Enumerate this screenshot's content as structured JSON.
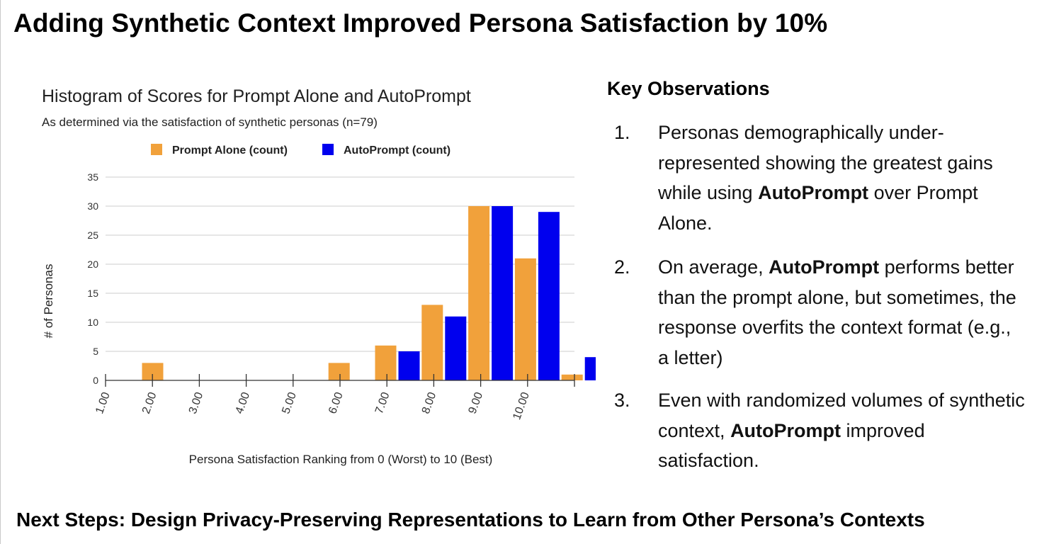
{
  "page": {
    "title": "Adding Synthetic Context Improved Persona Satisfaction by 10%",
    "next_steps": "Next Steps: Design Privacy-Preserving Representations to Learn from Other Persona’s Contexts"
  },
  "observations": {
    "heading": "Key Observations",
    "items": [
      {
        "number": "1.",
        "parts": [
          {
            "text": "Personas demographically under-represented showing the greatest gains while using ",
            "bold": false
          },
          {
            "text": "AutoPrompt",
            "bold": true
          },
          {
            "text": " over Prompt Alone.",
            "bold": false
          }
        ]
      },
      {
        "number": "2.",
        "parts": [
          {
            "text": "On average, ",
            "bold": false
          },
          {
            "text": "AutoPrompt",
            "bold": true
          },
          {
            "text": " performs better than the prompt alone, but sometimes, the response overfits the context format (e.g., a letter)",
            "bold": false
          }
        ]
      },
      {
        "number": "3.",
        "parts": [
          {
            "text": "Even with randomized volumes of synthetic context, ",
            "bold": false
          },
          {
            "text": "AutoPrompt",
            "bold": true
          },
          {
            "text": " improved satisfaction.",
            "bold": false
          }
        ]
      }
    ]
  },
  "chart_data": {
    "type": "bar",
    "title": "Histogram of Scores for Prompt Alone and AutoPrompt",
    "subtitle": "As determined via the satisfaction of synthetic personas (n=79)",
    "xlabel": "Persona Satisfaction Ranking from 0 (Worst) to 10 (Best)",
    "ylabel": "# of Personas",
    "categories": [
      "1.00",
      "2.00",
      "3.00",
      "4.00",
      "5.00",
      "6.00",
      "7.00",
      "8.00",
      "9.00",
      "10.00"
    ],
    "series": [
      {
        "name": "Prompt Alone (count)",
        "color": "#f1a13b",
        "values": [
          3,
          0,
          0,
          0,
          3,
          6,
          13,
          30,
          21,
          1
        ]
      },
      {
        "name": "AutoPrompt (count)",
        "color": "#0000ee",
        "values": [
          0,
          0,
          0,
          0,
          0,
          5,
          11,
          30,
          29,
          4
        ]
      }
    ],
    "yticks": [
      0,
      5,
      10,
      15,
      20,
      25,
      30,
      35
    ],
    "ylim": [
      0,
      35
    ],
    "grid": true,
    "legend": "top"
  }
}
